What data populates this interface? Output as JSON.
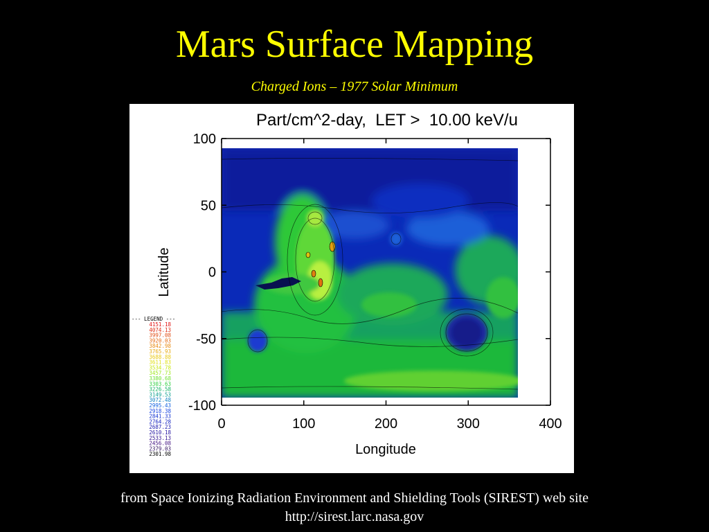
{
  "slide": {
    "title": "Mars Surface Mapping",
    "subtitle": "Charged Ions – 1977 Solar Minimum",
    "source_line": "from Space Ionizing Radiation Environment and Shielding Tools (SIREST) web site",
    "source_url": "http://sirest.larc.nasa.gov"
  },
  "colors": {
    "background": "#000000",
    "title": "#ffff00",
    "footer": "#ffffff",
    "ocean_low": "#0a1a9a",
    "mid": "#1f5fe0",
    "high": "#1fcc3a",
    "peak": "#d0ff40"
  },
  "chart_data": {
    "type": "heatmap",
    "title": "Part/cm^2-day,  LET >  10.00 keV/u",
    "xlabel": "Longitude",
    "ylabel": "Latitude",
    "xlim": [
      0,
      400
    ],
    "ylim": [
      -100,
      100
    ],
    "x_ticks": [
      "0",
      "100",
      "200",
      "300",
      "400"
    ],
    "y_ticks": [
      "100",
      "50",
      "0",
      "-50",
      "-100"
    ],
    "grid": false,
    "legend_position": "left",
    "legend_title": "--- LEGEND ---",
    "legend": [
      {
        "label": "4151.18",
        "color": "#e01010"
      },
      {
        "label": "4074.13",
        "color": "#e02a10"
      },
      {
        "label": "3997.08",
        "color": "#e04a10"
      },
      {
        "label": "3920.03",
        "color": "#e66a10"
      },
      {
        "label": "3842.98",
        "color": "#e88a10"
      },
      {
        "label": "3765.93",
        "color": "#e8aa10"
      },
      {
        "label": "3688.88",
        "color": "#e8c810"
      },
      {
        "label": "3611.83",
        "color": "#e0e010"
      },
      {
        "label": "3534.78",
        "color": "#c8e810"
      },
      {
        "label": "3457.73",
        "color": "#a0e820"
      },
      {
        "label": "3380.68",
        "color": "#70e030"
      },
      {
        "label": "3303.63",
        "color": "#30d040"
      },
      {
        "label": "3226.58",
        "color": "#10b060"
      },
      {
        "label": "3149.53",
        "color": "#10a090"
      },
      {
        "label": "3072.48",
        "color": "#1080c0"
      },
      {
        "label": "2995.43",
        "color": "#1060e0"
      },
      {
        "label": "2918.38",
        "color": "#1040e0"
      },
      {
        "label": "2841.33",
        "color": "#1030d0"
      },
      {
        "label": "2764.28",
        "color": "#1020c0"
      },
      {
        "label": "2687.23",
        "color": "#1818b0"
      },
      {
        "label": "2610.18",
        "color": "#2010a0"
      },
      {
        "label": "2533.13",
        "color": "#301090"
      },
      {
        "label": "2456.08",
        "color": "#401080"
      },
      {
        "label": "2379.03",
        "color": "#301060"
      },
      {
        "label": "2301.98",
        "color": "#000000"
      }
    ]
  }
}
